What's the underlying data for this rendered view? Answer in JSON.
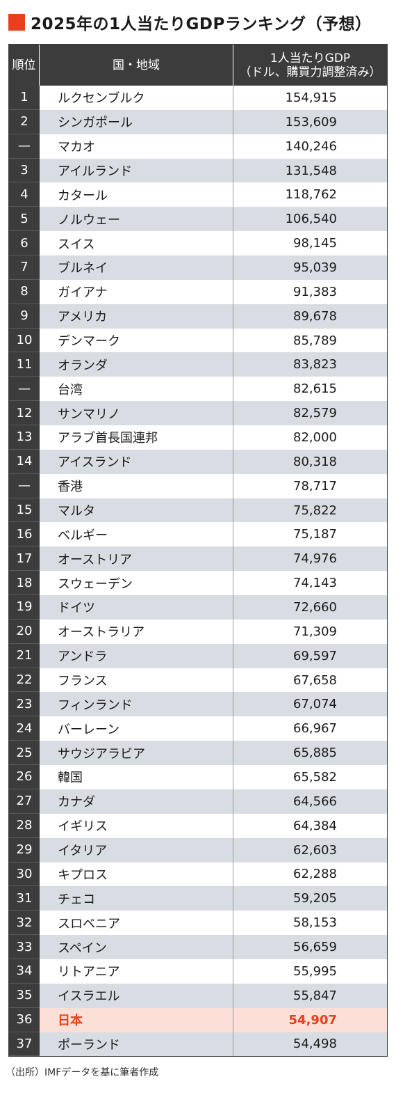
{
  "title": "2025年の1人当たりGDPランキング（予想）",
  "accent_color": "#e8401c",
  "table": {
    "headers": {
      "rank": "順位",
      "country": "国・地域",
      "gdp_line1": "1人当たりGDP",
      "gdp_line2": "（ドル、購買力調整済み）"
    },
    "rows": [
      {
        "rank": "1",
        "country": "ルクセンブルク",
        "gdp": "154,915"
      },
      {
        "rank": "2",
        "country": "シンガポール",
        "gdp": "153,609"
      },
      {
        "rank": "—",
        "country": "マカオ",
        "gdp": "140,246"
      },
      {
        "rank": "3",
        "country": "アイルランド",
        "gdp": "131,548"
      },
      {
        "rank": "4",
        "country": "カタール",
        "gdp": "118,762"
      },
      {
        "rank": "5",
        "country": "ノルウェー",
        "gdp": "106,540"
      },
      {
        "rank": "6",
        "country": "スイス",
        "gdp": "98,145"
      },
      {
        "rank": "7",
        "country": "ブルネイ",
        "gdp": "95,039"
      },
      {
        "rank": "8",
        "country": "ガイアナ",
        "gdp": "91,383"
      },
      {
        "rank": "9",
        "country": "アメリカ",
        "gdp": "89,678"
      },
      {
        "rank": "10",
        "country": "デンマーク",
        "gdp": "85,789"
      },
      {
        "rank": "11",
        "country": "オランダ",
        "gdp": "83,823"
      },
      {
        "rank": "—",
        "country": "台湾",
        "gdp": "82,615"
      },
      {
        "rank": "12",
        "country": "サンマリノ",
        "gdp": "82,579"
      },
      {
        "rank": "13",
        "country": "アラブ首長国連邦",
        "gdp": "82,000"
      },
      {
        "rank": "14",
        "country": "アイスランド",
        "gdp": "80,318"
      },
      {
        "rank": "—",
        "country": "香港",
        "gdp": "78,717"
      },
      {
        "rank": "15",
        "country": "マルタ",
        "gdp": "75,822"
      },
      {
        "rank": "16",
        "country": "ベルギー",
        "gdp": "75,187"
      },
      {
        "rank": "17",
        "country": "オーストリア",
        "gdp": "74,976"
      },
      {
        "rank": "18",
        "country": "スウェーデン",
        "gdp": "74,143"
      },
      {
        "rank": "19",
        "country": "ドイツ",
        "gdp": "72,660"
      },
      {
        "rank": "20",
        "country": "オーストラリア",
        "gdp": "71,309"
      },
      {
        "rank": "21",
        "country": "アンドラ",
        "gdp": "69,597"
      },
      {
        "rank": "22",
        "country": "フランス",
        "gdp": "67,658"
      },
      {
        "rank": "23",
        "country": "フィンランド",
        "gdp": "67,074"
      },
      {
        "rank": "24",
        "country": "バーレーン",
        "gdp": "66,967"
      },
      {
        "rank": "25",
        "country": "サウジアラビア",
        "gdp": "65,885"
      },
      {
        "rank": "26",
        "country": "韓国",
        "gdp": "65,582"
      },
      {
        "rank": "27",
        "country": "カナダ",
        "gdp": "64,566"
      },
      {
        "rank": "28",
        "country": "イギリス",
        "gdp": "64,384"
      },
      {
        "rank": "29",
        "country": "イタリア",
        "gdp": "62,603"
      },
      {
        "rank": "30",
        "country": "キプロス",
        "gdp": "62,288"
      },
      {
        "rank": "31",
        "country": "チェコ",
        "gdp": "59,205"
      },
      {
        "rank": "32",
        "country": "スロベニア",
        "gdp": "58,153"
      },
      {
        "rank": "33",
        "country": "スペイン",
        "gdp": "56,659"
      },
      {
        "rank": "34",
        "country": "リトアニア",
        "gdp": "55,995"
      },
      {
        "rank": "35",
        "country": "イスラエル",
        "gdp": "55,847"
      },
      {
        "rank": "36",
        "country": "日本",
        "gdp": "54,907",
        "highlight": true
      },
      {
        "rank": "37",
        "country": "ポーランド",
        "gdp": "54,498"
      }
    ]
  },
  "source_note": "（出所）IMFデータを基に筆者作成"
}
